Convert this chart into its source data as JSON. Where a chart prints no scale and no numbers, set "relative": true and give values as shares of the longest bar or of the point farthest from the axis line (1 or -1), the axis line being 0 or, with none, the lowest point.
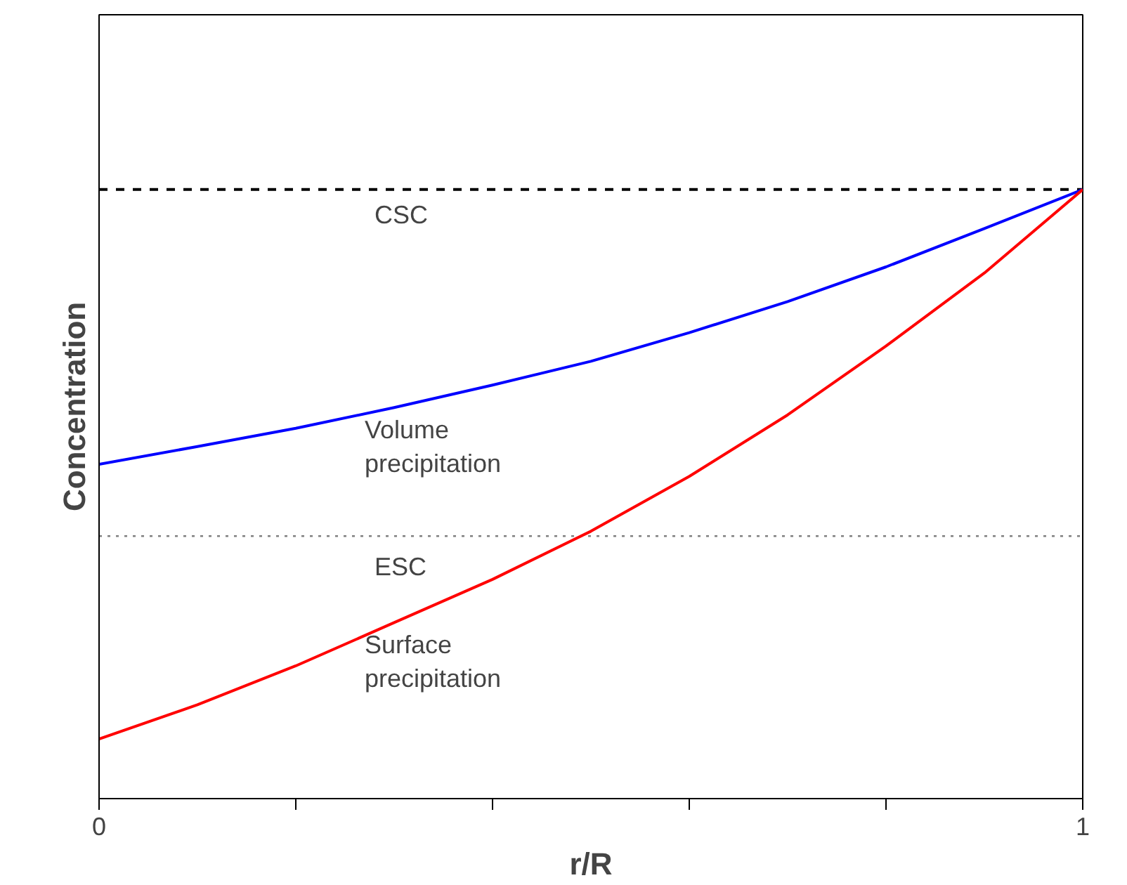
{
  "chart_data": {
    "type": "line",
    "relative": true,
    "xlabel": "r/R",
    "ylabel": "Concentration",
    "x": [
      0,
      0.1,
      0.2,
      0.3,
      0.4,
      0.5,
      0.6,
      0.7,
      0.8,
      0.9,
      1
    ],
    "xlim": [
      0,
      1
    ],
    "xticks": [
      0,
      {
        "value": 0.2,
        "label": null
      },
      {
        "value": 0.4,
        "label": null
      },
      {
        "value": 0.6,
        "label": null
      },
      {
        "value": 0.8,
        "label": null
      },
      1
    ],
    "series": [
      {
        "name": "Volume precipitation",
        "color": "#0000ff",
        "values": [
          0.549,
          0.578,
          0.608,
          0.642,
          0.679,
          0.718,
          0.765,
          0.816,
          0.873,
          0.936,
          1
        ]
      },
      {
        "name": "Surface precipitation",
        "color": "#ff0000",
        "values": [
          0.098,
          0.154,
          0.218,
          0.289,
          0.36,
          0.439,
          0.529,
          0.63,
          0.743,
          0.863,
          1
        ]
      }
    ],
    "ref_lines": [
      {
        "axis": "y",
        "value": 1,
        "label": "CSC",
        "color": "#000000",
        "line_style": "dashed"
      },
      {
        "axis": "y",
        "value": 0.431,
        "label": "ESC",
        "color": "#808080",
        "line_style": "dotted"
      }
    ],
    "grid": false,
    "marker": "none",
    "line_style": "solid"
  }
}
